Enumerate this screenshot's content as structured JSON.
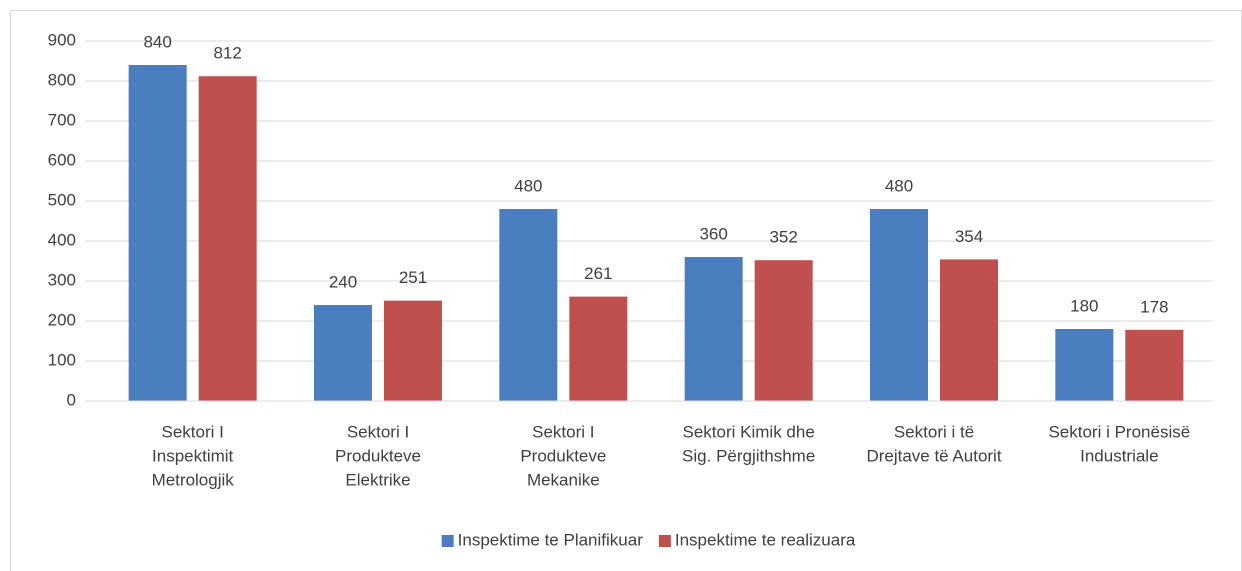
{
  "chart_data": {
    "type": "bar",
    "categories": [
      [
        "Sektori I",
        "Inspektimit",
        "Metrologjik"
      ],
      [
        "Sektori I",
        "Produkteve",
        "Elektrike"
      ],
      [
        "Sektori I",
        "Produkteve",
        "Mekanike"
      ],
      [
        "Sektori Kimik dhe",
        "Sig. Përgjithshme"
      ],
      [
        "Sektori i të",
        "Drejtave të Autorit"
      ],
      [
        "Sektori i Pronësisë",
        "Industriale"
      ]
    ],
    "series": [
      {
        "name": "Inspektime te Planifikuar",
        "color": "#4a7ebf",
        "values": [
          840,
          240,
          480,
          360,
          480,
          180
        ]
      },
      {
        "name": "Inspektime te realizuara",
        "color": "#c0504d",
        "values": [
          812,
          251,
          261,
          352,
          354,
          178
        ]
      }
    ],
    "ylim": [
      0,
      900
    ],
    "yticks": [
      0,
      100,
      200,
      300,
      400,
      500,
      600,
      700,
      800,
      900
    ],
    "grid": true,
    "legend": "bottom"
  }
}
